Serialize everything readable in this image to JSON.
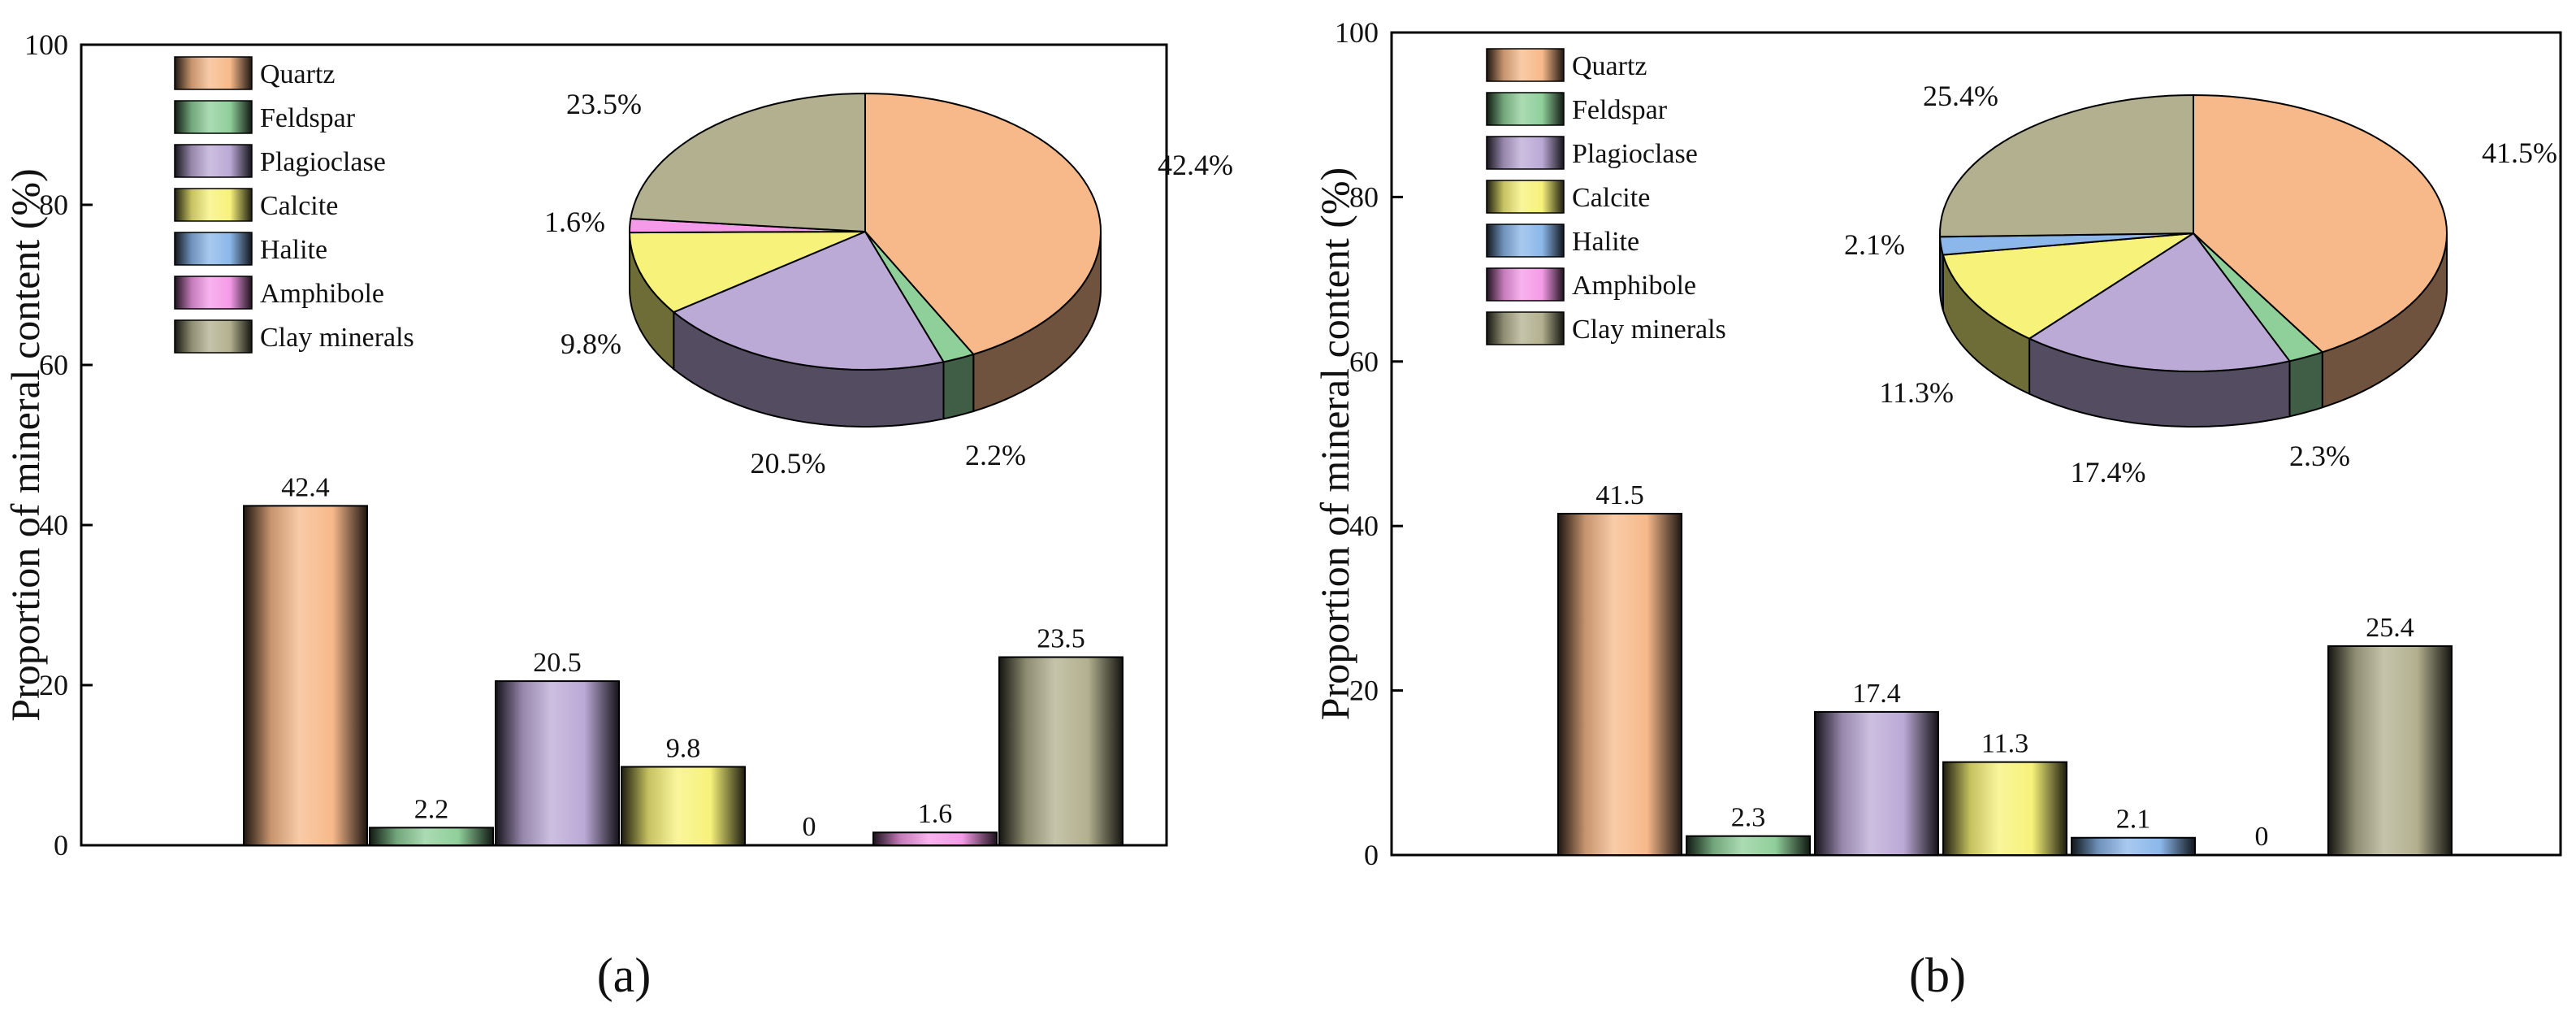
{
  "chart_data": [
    {
      "type": "bar",
      "panel_label": "(a)",
      "categories": [
        "Quartz",
        "Feldspar",
        "Plagioclase",
        "Calcite",
        "Halite",
        "Amphibole",
        "Clay minerals"
      ],
      "values": [
        42.4,
        2.2,
        20.5,
        9.8,
        0,
        1.6,
        23.5
      ],
      "value_labels": [
        "42.4",
        "2.2",
        "20.5",
        "9.8",
        "0",
        "1.6",
        "23.5"
      ],
      "ylabel": "Proportion of mineral content (%)",
      "xlabel": "",
      "ylim": [
        0,
        100
      ],
      "yticks": [
        "0",
        "20",
        "40",
        "60",
        "80",
        "100"
      ],
      "legend_placement": "top-left",
      "grid": false,
      "inset_pie": {
        "type": "pie",
        "slices": [
          42.4,
          2.2,
          20.5,
          9.8,
          0,
          1.6,
          23.5
        ],
        "slice_labels": [
          "42.4%",
          "2.2%",
          "20.5%",
          "9.8%",
          "",
          "1.6%",
          "23.5%"
        ]
      }
    },
    {
      "type": "bar",
      "panel_label": "(b)",
      "categories": [
        "Quartz",
        "Feldspar",
        "Plagioclase",
        "Calcite",
        "Halite",
        "Amphibole",
        "Clay minerals"
      ],
      "values": [
        41.5,
        2.3,
        17.4,
        11.3,
        2.1,
        0,
        25.4
      ],
      "value_labels": [
        "41.5",
        "2.3",
        "17.4",
        "11.3",
        "2.1",
        "0",
        "25.4"
      ],
      "ylabel": "Proportion of mineral content (%)",
      "xlabel": "",
      "ylim": [
        0,
        100
      ],
      "yticks": [
        "0",
        "20",
        "40",
        "60",
        "80",
        "100"
      ],
      "legend_placement": "top-left",
      "grid": false,
      "inset_pie": {
        "type": "pie",
        "slices": [
          41.5,
          2.3,
          17.4,
          11.3,
          2.1,
          0,
          25.4
        ],
        "slice_labels": [
          "41.5%",
          "2.3%",
          "17.4%",
          "11.3%",
          "2.1%",
          "",
          "25.4%"
        ]
      }
    }
  ],
  "colors": {
    "Quartz": "#F7B98A",
    "Feldspar": "#8FCF9A",
    "Plagioclase": "#BBA9D6",
    "Calcite": "#F7F27A",
    "Halite": "#8BB7EA",
    "Amphibole": "#F59AE8",
    "Clay minerals": "#B2B08E"
  }
}
